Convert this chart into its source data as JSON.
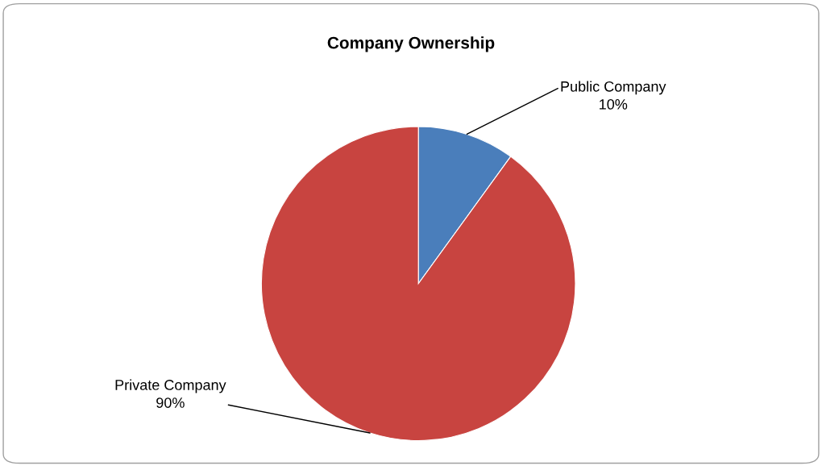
{
  "chart_data": {
    "type": "pie",
    "title": "Company Ownership",
    "categories": [
      "Public Company",
      "Private Company"
    ],
    "values": [
      10,
      90
    ],
    "value_labels": [
      "10%",
      "90%"
    ],
    "colors": [
      "#4a7ebb",
      "#c84440"
    ],
    "legend": false
  }
}
